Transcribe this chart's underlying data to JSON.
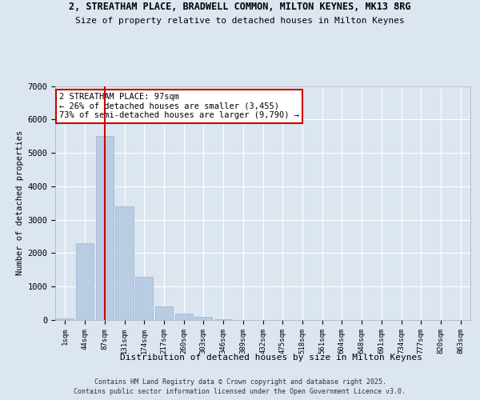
{
  "title_line1": "2, STREATHAM PLACE, BRADWELL COMMON, MILTON KEYNES, MK13 8RG",
  "title_line2": "Size of property relative to detached houses in Milton Keynes",
  "xlabel": "Distribution of detached houses by size in Milton Keynes",
  "ylabel": "Number of detached properties",
  "categories": [
    "1sqm",
    "44sqm",
    "87sqm",
    "131sqm",
    "174sqm",
    "217sqm",
    "260sqm",
    "303sqm",
    "346sqm",
    "389sqm",
    "432sqm",
    "475sqm",
    "518sqm",
    "561sqm",
    "604sqm",
    "648sqm",
    "691sqm",
    "734sqm",
    "777sqm",
    "820sqm",
    "863sqm"
  ],
  "values": [
    50,
    2300,
    5500,
    3400,
    1300,
    400,
    180,
    100,
    30,
    10,
    5,
    3,
    2,
    1,
    1,
    1,
    0,
    0,
    0,
    0,
    0
  ],
  "bar_color": "#b8cce4",
  "bar_edge_color": "#9ab3d0",
  "vline_index": 2,
  "vline_color": "#cc0000",
  "annotation_title": "2 STREATHAM PLACE: 97sqm",
  "annotation_line1": "← 26% of detached houses are smaller (3,455)",
  "annotation_line2": "73% of semi-detached houses are larger (9,790) →",
  "annotation_box_color": "#ffffff",
  "annotation_box_edge_color": "#cc0000",
  "ylim": [
    0,
    7000
  ],
  "yticks": [
    0,
    1000,
    2000,
    3000,
    4000,
    5000,
    6000,
    7000
  ],
  "background_color": "#dce6f1",
  "plot_bg_color": "#dce6f1",
  "grid_color": "#ffffff",
  "footer_line1": "Contains HM Land Registry data © Crown copyright and database right 2025.",
  "footer_line2": "Contains public sector information licensed under the Open Government Licence v3.0."
}
